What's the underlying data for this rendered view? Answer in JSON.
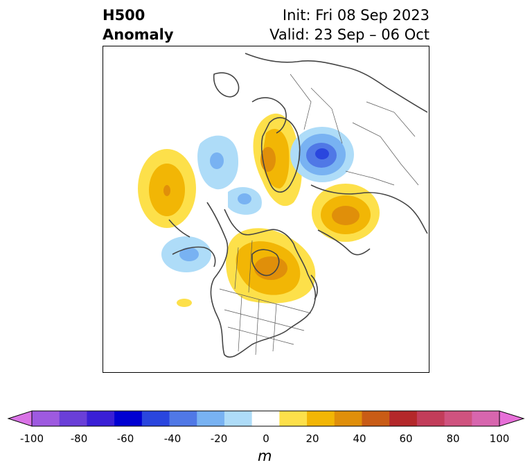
{
  "title": {
    "left_line1": "H500",
    "left_line2": "Anomaly",
    "right_line1": "Init: Fri 08 Sep 2023",
    "right_line2": "Valid: 23 Sep – 06 Oct"
  },
  "map": {
    "projection": "polar stereographic, North Pole",
    "field": "500 hPa geopotential height anomaly",
    "units": "m",
    "anomaly_centers": [
      {
        "region": "Northeast Pacific",
        "sign": "positive",
        "peak": "30-40"
      },
      {
        "region": "Alaska / Bering",
        "sign": "negative",
        "peak": "-20 to -30"
      },
      {
        "region": "Greenland / Arctic Canada",
        "sign": "positive",
        "peak": "30-40"
      },
      {
        "region": "Western Russia / Scandinavia",
        "sign": "negative",
        "peak": "-40 to -50"
      },
      {
        "region": "Central Siberia",
        "sign": "positive",
        "peak": "30-40"
      },
      {
        "region": "Central Canada",
        "sign": "positive",
        "peak": "30-40"
      },
      {
        "region": "North Pacific",
        "sign": "negative",
        "peak": "-20 to -30"
      },
      {
        "region": "Southern Europe",
        "sign": "negative",
        "peak": "-20 to -30"
      }
    ]
  },
  "colorbar": {
    "unit_label": "m",
    "ticks": [
      "-100",
      "-80",
      "-60",
      "-40",
      "-20",
      "0",
      "20",
      "40",
      "60",
      "80",
      "100"
    ],
    "levels": [
      -100,
      -90,
      -80,
      -70,
      -60,
      -50,
      -40,
      -30,
      -20,
      -10,
      10,
      20,
      30,
      40,
      50,
      60,
      70,
      80,
      90,
      100
    ],
    "colors": [
      "#d973e6",
      "#9e5ae0",
      "#6a3fd8",
      "#3a1fd6",
      "#0000d2",
      "#2a46de",
      "#5078e6",
      "#78b2f2",
      "#aedcf8",
      "#ffffff",
      "#fde04a",
      "#f2b605",
      "#e08f0a",
      "#c95c16",
      "#b4282a",
      "#c23d5a",
      "#cf537f",
      "#d766ae",
      "#e76fd8"
    ],
    "extend": "both"
  }
}
